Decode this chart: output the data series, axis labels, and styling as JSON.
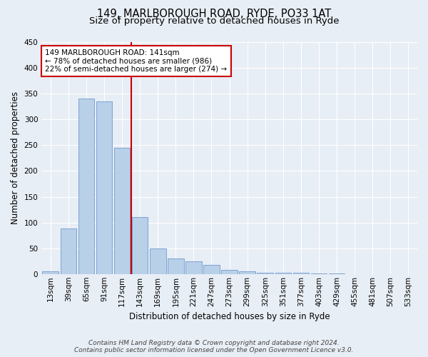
{
  "title_line1": "149, MARLBOROUGH ROAD, RYDE, PO33 1AT",
  "title_line2": "Size of property relative to detached houses in Ryde",
  "xlabel": "Distribution of detached houses by size in Ryde",
  "ylabel": "Number of detached properties",
  "categories": [
    "13sqm",
    "39sqm",
    "65sqm",
    "91sqm",
    "117sqm",
    "143sqm",
    "169sqm",
    "195sqm",
    "221sqm",
    "247sqm",
    "273sqm",
    "299sqm",
    "325sqm",
    "351sqm",
    "377sqm",
    "403sqm",
    "429sqm",
    "455sqm",
    "481sqm",
    "507sqm",
    "533sqm"
  ],
  "values": [
    5,
    88,
    340,
    335,
    245,
    110,
    50,
    30,
    25,
    18,
    8,
    5,
    3,
    3,
    2,
    1,
    1,
    0,
    0,
    0,
    0
  ],
  "bar_color": "#b8d0e8",
  "bar_edge_color": "#5b8cc8",
  "highlight_index": 5,
  "highlight_line_color": "#cc0000",
  "annotation_text": "149 MARLBOROUGH ROAD: 141sqm\n← 78% of detached houses are smaller (986)\n22% of semi-detached houses are larger (274) →",
  "annotation_box_color": "#ffffff",
  "annotation_box_edge": "#cc0000",
  "ylim": [
    0,
    450
  ],
  "yticks": [
    0,
    50,
    100,
    150,
    200,
    250,
    300,
    350,
    400,
    450
  ],
  "footer_line1": "Contains HM Land Registry data © Crown copyright and database right 2024.",
  "footer_line2": "Contains public sector information licensed under the Open Government Licence v3.0.",
  "background_color": "#e8eef5",
  "grid_color": "#ffffff",
  "title_fontsize": 10.5,
  "subtitle_fontsize": 9.5,
  "axis_label_fontsize": 8.5,
  "tick_fontsize": 7.5,
  "annotation_fontsize": 7.5,
  "footer_fontsize": 6.5
}
